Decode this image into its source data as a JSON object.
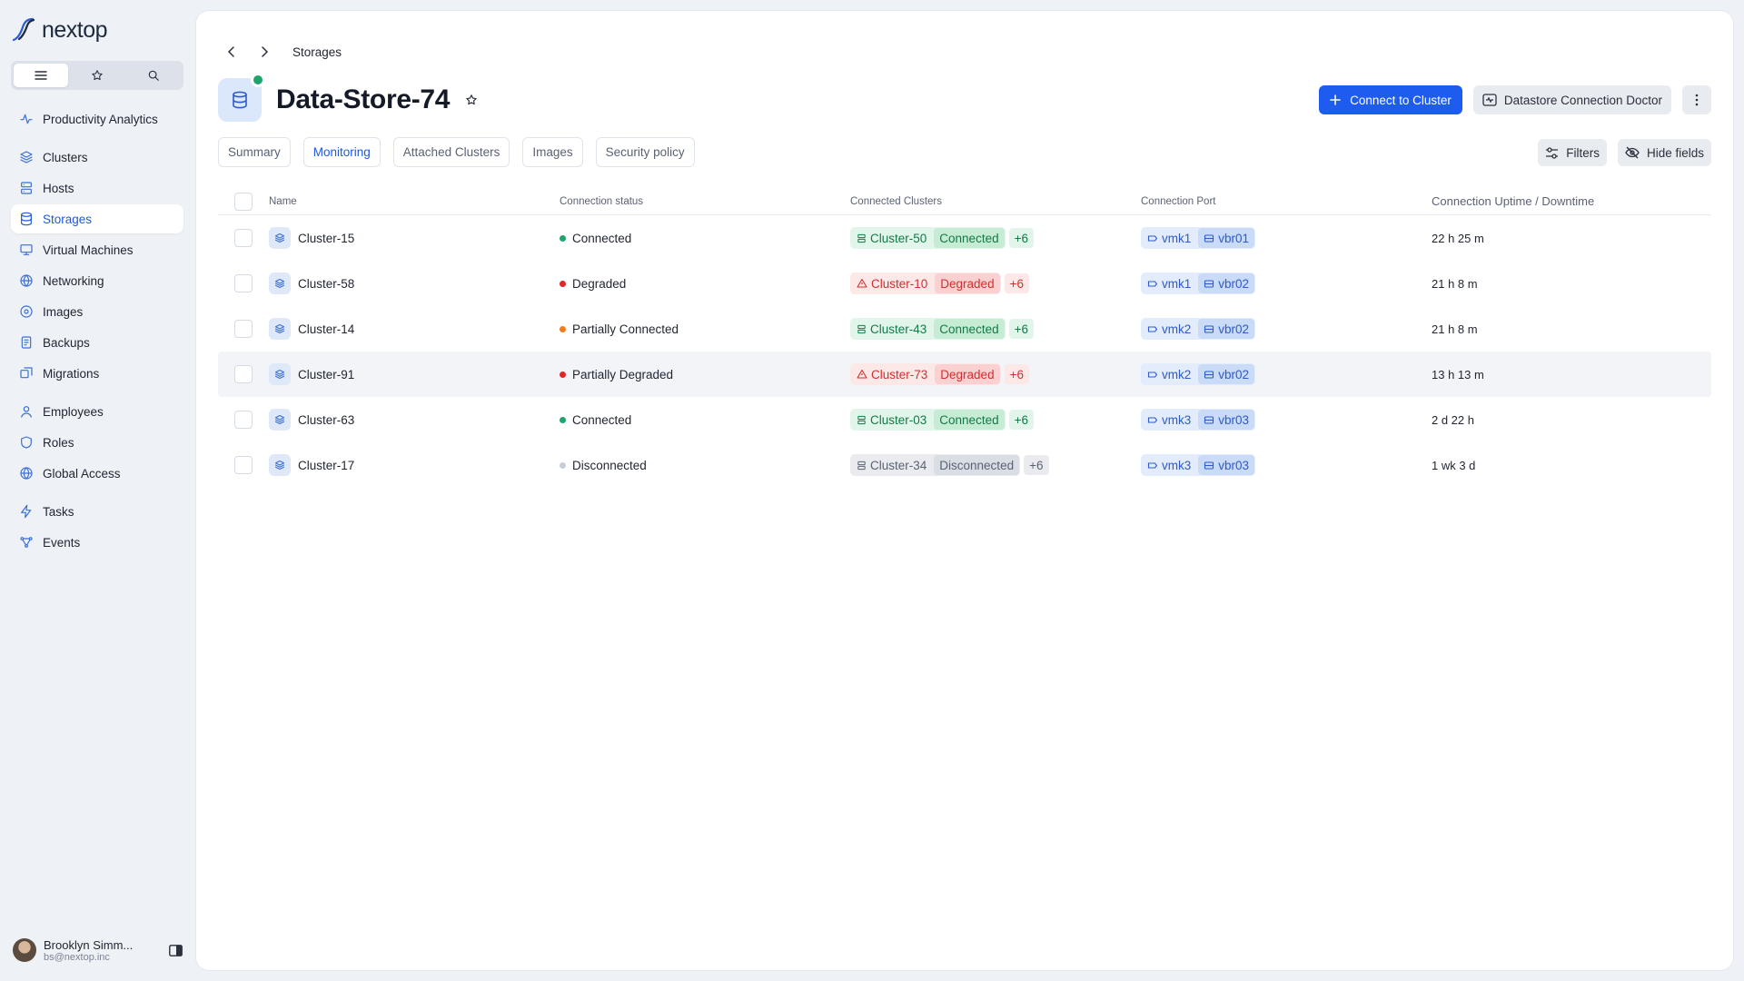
{
  "app": {
    "logo_text": "nextop"
  },
  "sidebar": {
    "nav_groups": [
      [
        {
          "label": "Productivity Analytics",
          "icon": "activity-icon"
        }
      ],
      [
        {
          "label": "Clusters",
          "icon": "layers-icon"
        },
        {
          "label": "Hosts",
          "icon": "server-icon"
        },
        {
          "label": "Storages",
          "icon": "database-icon",
          "active": true
        },
        {
          "label": "Virtual Machines",
          "icon": "monitor-icon"
        },
        {
          "label": "Networking",
          "icon": "globe-icon"
        },
        {
          "label": "Images",
          "icon": "disc-icon"
        },
        {
          "label": "Backups",
          "icon": "backup-icon"
        },
        {
          "label": "Migrations",
          "icon": "migration-icon"
        }
      ],
      [
        {
          "label": "Employees",
          "icon": "user-icon"
        },
        {
          "label": "Roles",
          "icon": "shield-icon"
        },
        {
          "label": "Global Access",
          "icon": "globe-icon"
        }
      ],
      [
        {
          "label": "Tasks",
          "icon": "bolt-icon"
        },
        {
          "label": "Events",
          "icon": "events-icon"
        }
      ]
    ],
    "user": {
      "name": "Brooklyn Simm...",
      "email": "bs@nextop.inc"
    }
  },
  "breadcrumb": {
    "current": "Storages"
  },
  "header": {
    "title": "Data-Store-74",
    "status_color": "#1ea56b",
    "connect_label": "Connect to Cluster",
    "doctor_label": "Datastore Connection Doctor"
  },
  "tabs": [
    {
      "label": "Summary",
      "active": false
    },
    {
      "label": "Monitoring",
      "active": true
    },
    {
      "label": "Attached Clusters",
      "active": false
    },
    {
      "label": "Images",
      "active": false
    },
    {
      "label": "Security policy",
      "active": false
    }
  ],
  "tools": {
    "filters_label": "Filters",
    "hide_fields_label": "Hide fields"
  },
  "table": {
    "columns": [
      "Name",
      "Connection status",
      "Connected Clusters",
      "Connection Port",
      "Connection Uptime / Downtime"
    ],
    "rows": [
      {
        "name": "Cluster-15",
        "status": "Connected",
        "status_color": "#1ea56b",
        "cluster": "Cluster-50",
        "cluster_state": "Connected",
        "tone": "green",
        "more": "+6",
        "vmk": "vmk1",
        "vbr": "vbr01",
        "uptime": "22 h 25 m"
      },
      {
        "name": "Cluster-58",
        "status": "Degraded",
        "status_color": "#e0262b",
        "cluster": "Cluster-10",
        "cluster_state": "Degraded",
        "tone": "red",
        "more": "+6",
        "vmk": "vmk1",
        "vbr": "vbr02",
        "uptime": "21 h 8 m"
      },
      {
        "name": "Cluster-14",
        "status": "Partially Connected",
        "status_color": "#f07b1a",
        "cluster": "Cluster-43",
        "cluster_state": "Connected",
        "tone": "green",
        "more": "+6",
        "vmk": "vmk2",
        "vbr": "vbr02",
        "uptime": "21 h 8 m"
      },
      {
        "name": "Cluster-91",
        "status": "Partially Degraded",
        "status_color": "#e0262b",
        "cluster": "Cluster-73",
        "cluster_state": "Degraded",
        "tone": "red",
        "more": "+6",
        "vmk": "vmk2",
        "vbr": "vbr02",
        "uptime": "13 h 13 m",
        "hover": true
      },
      {
        "name": "Cluster-63",
        "status": "Connected",
        "status_color": "#1ea56b",
        "cluster": "Cluster-03",
        "cluster_state": "Connected",
        "tone": "green",
        "more": "+6",
        "vmk": "vmk3",
        "vbr": "vbr03",
        "uptime": "2 d 22 h"
      },
      {
        "name": "Cluster-17",
        "status": "Disconnected",
        "status_color": "#c9ced6",
        "cluster": "Cluster-34",
        "cluster_state": "Disconnected",
        "tone": "gray",
        "more": "+6",
        "vmk": "vmk3",
        "vbr": "vbr03",
        "uptime": "1 wk 3 d"
      }
    ]
  }
}
